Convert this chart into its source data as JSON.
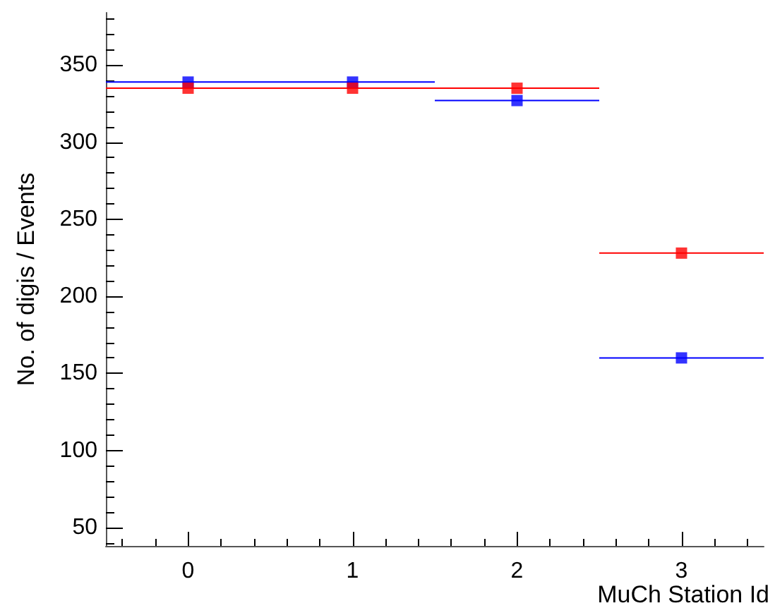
{
  "chart_data": {
    "type": "scatter",
    "xlabel": "MuCh Station Id",
    "ylabel": "No. of digis / Events",
    "x": [
      0,
      1,
      2,
      3
    ],
    "xlim": [
      -0.5,
      3.5
    ],
    "xticks": [
      0,
      1,
      2,
      3
    ],
    "ylim": [
      38,
      384
    ],
    "yticks": [
      50,
      100,
      150,
      200,
      250,
      300,
      350
    ],
    "series": [
      {
        "color": "#0000ff",
        "values": [
          339,
          339,
          327,
          160
        ],
        "xerrors": [
          0.5,
          0.5,
          0.5,
          0.5
        ]
      },
      {
        "color": "#ff0000",
        "values": [
          335,
          335,
          335,
          228
        ],
        "xerrors": [
          0.5,
          0.5,
          0.5,
          0.5
        ]
      }
    ],
    "marker": "square",
    "grid": false
  }
}
